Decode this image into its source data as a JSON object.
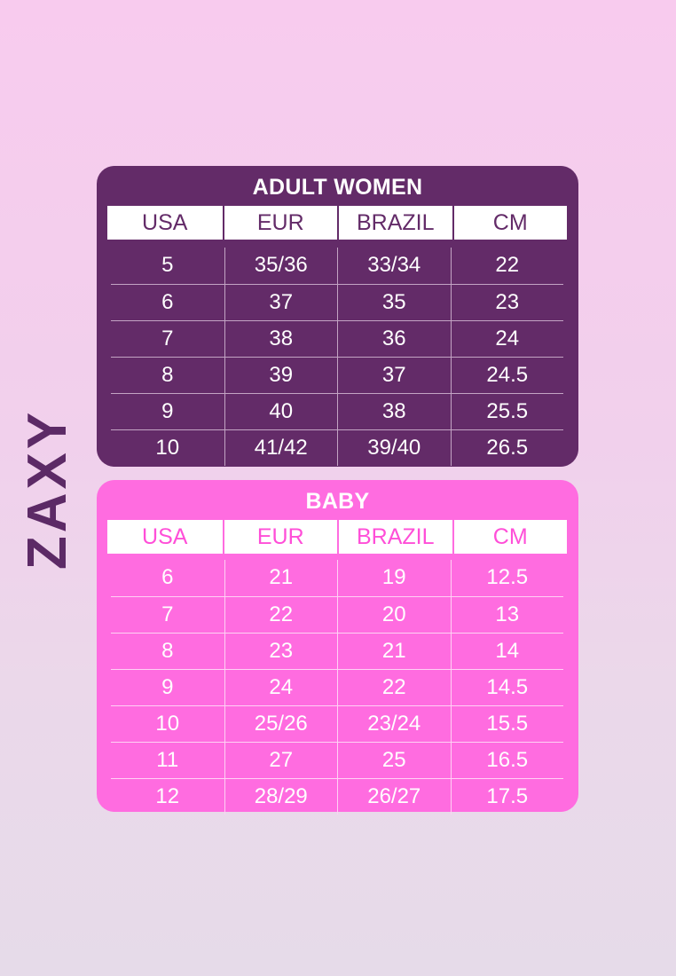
{
  "brand": "ZAXY",
  "tables": [
    {
      "title": "ADULT WOMEN",
      "headers": [
        "USA",
        "EUR",
        "BRAZIL",
        "CM"
      ],
      "rows": [
        [
          "5",
          "35/36",
          "33/34",
          "22"
        ],
        [
          "6",
          "37",
          "35",
          "23"
        ],
        [
          "7",
          "38",
          "36",
          "24"
        ],
        [
          "8",
          "39",
          "37",
          "24.5"
        ],
        [
          "9",
          "40",
          "38",
          "25.5"
        ],
        [
          "10",
          "41/42",
          "39/40",
          "26.5"
        ]
      ]
    },
    {
      "title": "BABY",
      "headers": [
        "USA",
        "EUR",
        "BRAZIL",
        "CM"
      ],
      "rows": [
        [
          "6",
          "21",
          "19",
          "12.5"
        ],
        [
          "7",
          "22",
          "20",
          "13"
        ],
        [
          "8",
          "23",
          "21",
          "14"
        ],
        [
          "9",
          "24",
          "22",
          "14.5"
        ],
        [
          "10",
          "25/26",
          "23/24",
          "15.5"
        ],
        [
          "11",
          "27",
          "25",
          "16.5"
        ],
        [
          "12",
          "28/29",
          "26/27",
          "17.5"
        ]
      ]
    }
  ],
  "colors": {
    "adult_panel": "#632b68",
    "baby_panel": "#ff6ce0",
    "brand_text": "#5c2a66",
    "background_top": "#f8cbee",
    "background_bottom": "#e6dbe9"
  }
}
